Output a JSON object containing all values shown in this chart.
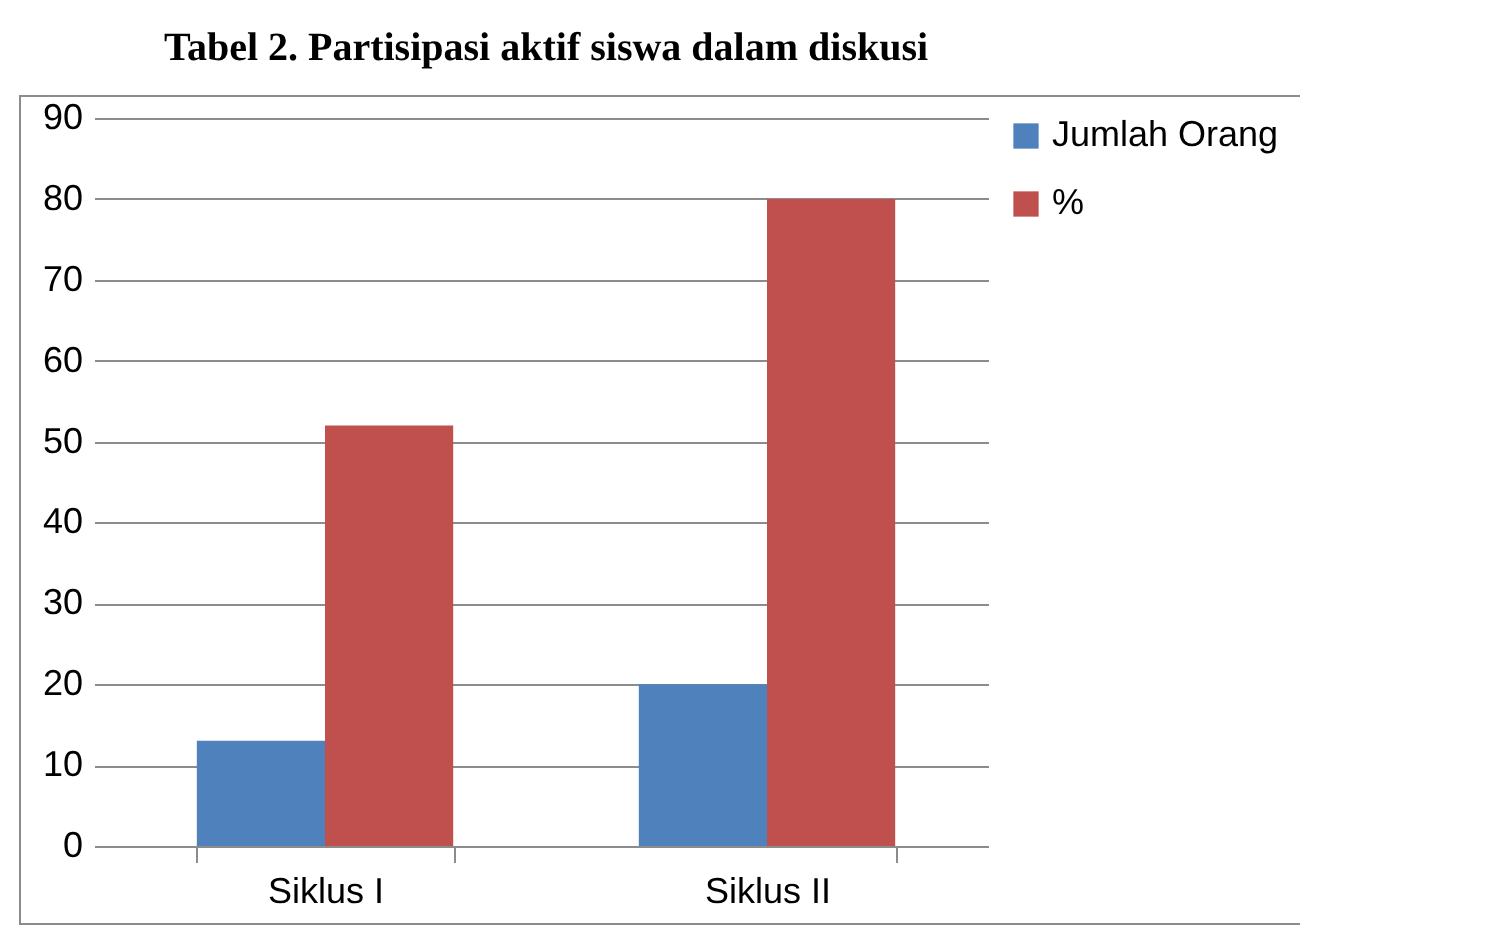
{
  "chart_data": {
    "type": "bar",
    "title": "Tabel 2. Partisipasi aktif siswa dalam diskusi",
    "categories": [
      "Siklus I",
      "Siklus II"
    ],
    "series": [
      {
        "name": "Jumlah Orang",
        "color": "#4f81bd",
        "values": [
          13,
          20
        ]
      },
      {
        "name": "%",
        "color": "#c0504d",
        "values": [
          52,
          80
        ]
      }
    ],
    "ylim": [
      0,
      90
    ],
    "yticks": [
      0,
      10,
      20,
      30,
      40,
      50,
      60,
      70,
      80,
      90
    ],
    "grid": "y",
    "legend": "right"
  }
}
